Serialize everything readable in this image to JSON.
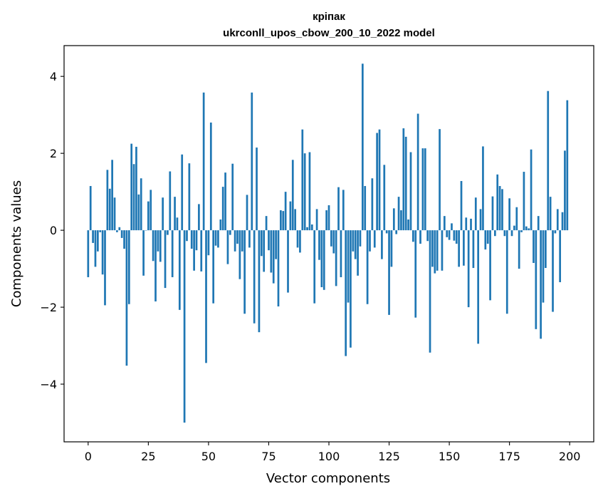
{
  "chart_data": {
    "type": "bar",
    "title": "кріпак",
    "subtitle": "ukrconll_upos_cbow_200_10_2022 model",
    "xlabel": "Vector components",
    "ylabel": "Components values",
    "xlim": [
      -10,
      210
    ],
    "ylim": [
      -5.5,
      4.8
    ],
    "xticks": [
      0,
      25,
      50,
      75,
      100,
      125,
      150,
      175,
      200
    ],
    "xtick_labels": [
      "0",
      "25",
      "50",
      "75",
      "100",
      "125",
      "150",
      "175",
      "200"
    ],
    "yticks": [
      -4,
      -2,
      0,
      2,
      4
    ],
    "ytick_labels": [
      "−4",
      "−2",
      "0",
      "2",
      "4"
    ],
    "grid": false,
    "bar_color": "#1f77b4",
    "series": [
      {
        "values": [
          -1.22,
          1.15,
          -0.33,
          -0.95,
          -0.55,
          -0.05,
          -1.15,
          -1.95,
          1.57,
          1.08,
          1.83,
          0.85,
          -0.05,
          0.08,
          -0.2,
          -0.48,
          -3.52,
          -1.92,
          2.25,
          1.72,
          2.17,
          0.93,
          1.35,
          -1.18,
          0.0,
          0.75,
          1.05,
          -0.8,
          -1.85,
          -0.55,
          -0.82,
          0.85,
          -1.5,
          -0.12,
          1.53,
          -1.22,
          0.87,
          0.33,
          -2.07,
          1.97,
          -5.0,
          -0.28,
          1.74,
          -0.48,
          -1.05,
          -0.52,
          0.68,
          -1.07,
          3.58,
          -3.45,
          -0.65,
          2.8,
          -1.9,
          -0.4,
          -0.45,
          0.28,
          1.13,
          1.5,
          -0.88,
          -0.12,
          1.73,
          -0.55,
          -0.35,
          -1.27,
          -0.55,
          -2.17,
          0.92,
          -0.45,
          3.58,
          -2.42,
          2.15,
          -2.65,
          -0.67,
          -1.08,
          0.37,
          -0.52,
          -1.1,
          -1.38,
          -0.75,
          -1.98,
          0.52,
          0.5,
          1.0,
          -1.62,
          0.75,
          1.83,
          0.55,
          -0.45,
          -0.58,
          2.62,
          2.0,
          0.08,
          2.03,
          0.15,
          -1.9,
          0.55,
          -0.77,
          -1.48,
          -1.55,
          0.52,
          0.65,
          -0.42,
          -0.6,
          -1.45,
          1.12,
          -1.22,
          1.05,
          -3.27,
          -1.88,
          -3.05,
          -0.55,
          -0.75,
          -1.18,
          -0.42,
          4.33,
          1.15,
          -1.92,
          -0.55,
          1.35,
          -0.45,
          2.53,
          2.62,
          -0.75,
          1.7,
          -0.08,
          -2.2,
          -0.95,
          0.57,
          -0.1,
          0.87,
          0.52,
          2.65,
          2.43,
          0.28,
          2.03,
          -0.3,
          -2.27,
          3.03,
          -0.35,
          2.13,
          2.13,
          -0.28,
          -3.18,
          -0.95,
          -1.12,
          -1.05,
          2.63,
          -1.05,
          0.37,
          -0.18,
          -0.25,
          0.18,
          -0.27,
          -0.35,
          -0.95,
          1.28,
          -0.92,
          0.33,
          -2.0,
          0.3,
          -0.98,
          0.85,
          -2.95,
          0.55,
          2.18,
          -0.5,
          -0.35,
          -1.82,
          0.88,
          -0.15,
          1.45,
          1.15,
          1.07,
          -0.15,
          -2.17,
          0.83,
          -0.15,
          0.12,
          0.6,
          -1.0,
          -0.05,
          1.52,
          0.1,
          0.05,
          2.1,
          -0.85,
          -2.57,
          0.37,
          -2.82,
          -1.88,
          -0.98,
          3.62,
          0.87,
          -2.12,
          -0.08,
          0.55,
          -1.35,
          0.47,
          2.07,
          3.38
        ]
      }
    ]
  }
}
